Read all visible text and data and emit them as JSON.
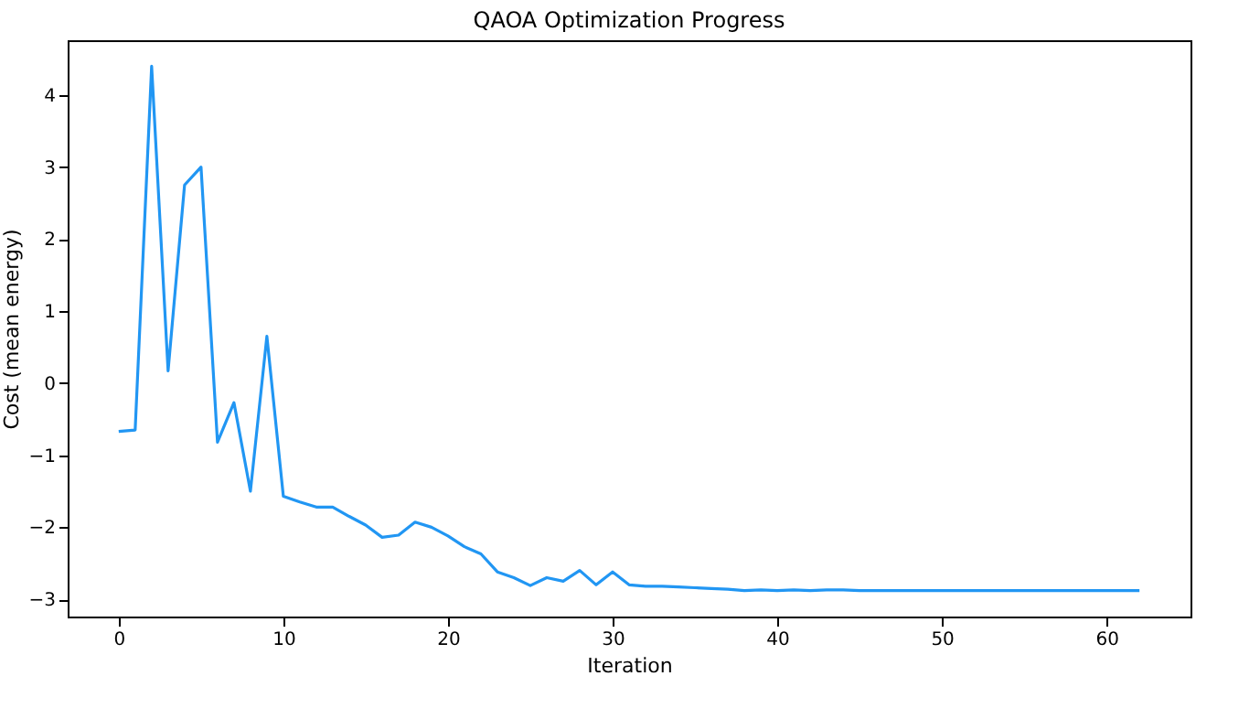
{
  "chart_data": {
    "type": "line",
    "title": "QAOA Optimization Progress",
    "xlabel": "Iteration",
    "ylabel": "Cost (mean energy)",
    "x": [
      0,
      1,
      2,
      3,
      4,
      5,
      6,
      7,
      8,
      9,
      10,
      11,
      12,
      13,
      14,
      15,
      16,
      17,
      18,
      19,
      20,
      21,
      22,
      23,
      24,
      25,
      26,
      27,
      28,
      29,
      30,
      31,
      32,
      33,
      34,
      35,
      36,
      37,
      38,
      39,
      40,
      41,
      42,
      43,
      44,
      45,
      46,
      47,
      48,
      49,
      50,
      51,
      52,
      53,
      54,
      55,
      56,
      57,
      58,
      59,
      60,
      61,
      62
    ],
    "series": [
      {
        "color": "#2196f3",
        "values": [
          -0.67,
          -0.65,
          4.4,
          0.17,
          2.75,
          3.0,
          -0.82,
          -0.27,
          -1.5,
          0.65,
          -1.57,
          -1.65,
          -1.72,
          -1.72,
          -1.85,
          -1.97,
          -2.14,
          -2.11,
          -1.93,
          -2.0,
          -2.12,
          -2.27,
          -2.37,
          -2.62,
          -2.7,
          -2.81,
          -2.7,
          -2.75,
          -2.6,
          -2.8,
          -2.62,
          -2.8,
          -2.82,
          -2.82,
          -2.83,
          -2.84,
          -2.85,
          -2.86,
          -2.88,
          -2.87,
          -2.88,
          -2.87,
          -2.88,
          -2.87,
          -2.87,
          -2.88,
          -2.88,
          -2.88,
          -2.88,
          -2.88,
          -2.88,
          -2.88,
          -2.88,
          -2.88,
          -2.88,
          -2.88,
          -2.88,
          -2.88,
          -2.88,
          -2.88,
          -2.88,
          -2.88,
          -2.88
        ]
      }
    ],
    "xlim": [
      -3.1,
      65.1
    ],
    "xticks": [
      0,
      10,
      20,
      30,
      40,
      50,
      60
    ],
    "ylim": [
      -3.24,
      4.76
    ],
    "yticks": [
      -3,
      -2,
      -1,
      0,
      1,
      2,
      3,
      4
    ],
    "grid": false,
    "line_style": "solid"
  }
}
